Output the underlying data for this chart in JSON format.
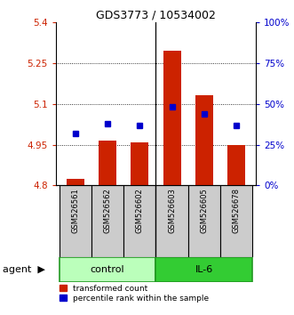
{
  "title": "GDS3773 / 10534002",
  "samples": [
    "GSM526561",
    "GSM526562",
    "GSM526602",
    "GSM526603",
    "GSM526605",
    "GSM526678"
  ],
  "groups": [
    "control",
    "control",
    "control",
    "IL-6",
    "IL-6",
    "IL-6"
  ],
  "red_values": [
    4.825,
    4.965,
    4.96,
    5.295,
    5.13,
    4.95
  ],
  "blue_values_pct": [
    32,
    38,
    37,
    48,
    44,
    37
  ],
  "ylim": [
    4.8,
    5.4
  ],
  "yticks_left": [
    4.8,
    4.95,
    5.1,
    5.25,
    5.4
  ],
  "yticks_right_pct": [
    0,
    25,
    50,
    75,
    100
  ],
  "bar_color": "#cc2200",
  "blue_color": "#0000cc",
  "bar_bottom": 4.8,
  "control_color": "#bbffbb",
  "il6_color": "#33cc33",
  "sample_box_color": "#cccccc",
  "legend_red_label": "transformed count",
  "legend_blue_label": "percentile rank within the sample",
  "bar_width": 0.55
}
